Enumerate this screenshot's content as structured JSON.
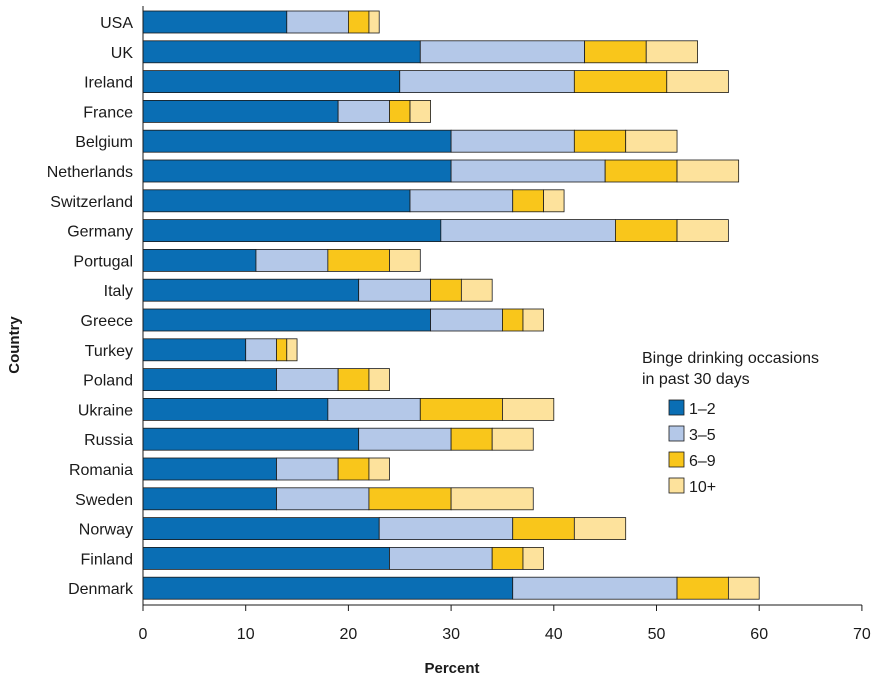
{
  "chart_data": {
    "type": "bar",
    "orientation": "horizontal",
    "stacked": true,
    "xlabel": "Percent",
    "ylabel": "Country",
    "xlim": [
      0,
      70
    ],
    "xticks": [
      0,
      10,
      20,
      30,
      40,
      50,
      60,
      70
    ],
    "grid": false,
    "legend_title": "Binge drinking occasions\nin past 30 days",
    "legend_placement": "right",
    "categories": [
      "USA",
      "UK",
      "Ireland",
      "France",
      "Belgium",
      "Netherlands",
      "Switzerland",
      "Germany",
      "Portugal",
      "Italy",
      "Greece",
      "Turkey",
      "Poland",
      "Ukraine",
      "Russia",
      "Romania",
      "Sweden",
      "Norway",
      "Finland",
      "Denmark"
    ],
    "series": [
      {
        "name": "1–2",
        "color": "#0a6eb4",
        "values": [
          14,
          27,
          25,
          19,
          30,
          30,
          26,
          29,
          11,
          21,
          28,
          10,
          13,
          18,
          21,
          13,
          13,
          23,
          24,
          36
        ]
      },
      {
        "name": "3–5",
        "color": "#b4c8e8",
        "values": [
          6,
          16,
          17,
          5,
          12,
          15,
          10,
          17,
          7,
          7,
          7,
          3,
          6,
          9,
          9,
          6,
          9,
          13,
          10,
          16
        ]
      },
      {
        "name": "6–9",
        "color": "#f9c61b",
        "values": [
          2,
          6,
          9,
          2,
          5,
          7,
          3,
          6,
          6,
          3,
          2,
          1,
          3,
          8,
          4,
          3,
          8,
          6,
          3,
          5
        ]
      },
      {
        "name": "10+",
        "color": "#fde29c",
        "values": [
          1,
          5,
          6,
          2,
          5,
          6,
          2,
          5,
          3,
          3,
          2,
          1,
          2,
          5,
          4,
          2,
          8,
          5,
          2,
          3
        ]
      }
    ]
  }
}
